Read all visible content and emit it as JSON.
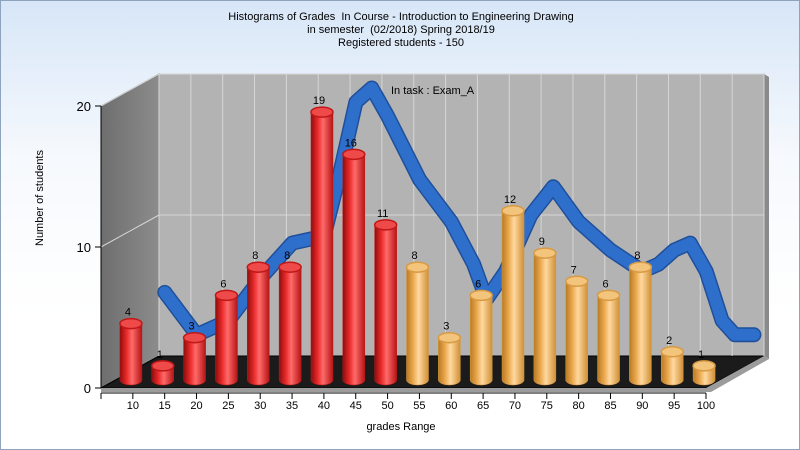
{
  "chart_data": {
    "type": "bar",
    "title_lines": [
      "Histograms of Grades  In Course - Introduction to Engineering Drawing",
      "in semester  (02/2018) Spring 2018/19",
      "Registered students - 150"
    ],
    "annotation": "In task : Exam_A",
    "xlabel": "grades Range",
    "ylabel": "Number of students",
    "ylim": [
      0,
      20
    ],
    "y_ticks": [
      "0",
      "10",
      "20"
    ],
    "x_tick_labels": [
      "10",
      "15",
      "20",
      "25",
      "30",
      "35",
      "40",
      "45",
      "50",
      "55",
      "60",
      "65",
      "70",
      "75",
      "80",
      "85",
      "90",
      "95",
      "100"
    ],
    "values": [
      4,
      1,
      3,
      6,
      8,
      8,
      19,
      16,
      11,
      8,
      3,
      6,
      12,
      9,
      7,
      6,
      8,
      2,
      1
    ],
    "bar_groups": [
      {
        "color": "#d91c1c",
        "from_index": 0,
        "to_index": 8
      },
      {
        "color": "#e8a64a",
        "from_index": 9,
        "to_index": 18
      }
    ],
    "trend_line": {
      "color": "#2f6fcc",
      "points": [
        [
          0.5,
          5.5
        ],
        [
          1.5,
          2.5
        ],
        [
          2.5,
          3.5
        ],
        [
          3.5,
          6.5
        ],
        [
          4.5,
          9.0
        ],
        [
          5.5,
          9.5
        ],
        [
          6.0,
          14.0
        ],
        [
          6.5,
          19.0
        ],
        [
          7.0,
          20.0
        ],
        [
          7.5,
          18.0
        ],
        [
          8.5,
          13.5
        ],
        [
          9.5,
          10.5
        ],
        [
          10.2,
          7.5
        ],
        [
          10.6,
          5.0
        ],
        [
          11.2,
          7.0
        ],
        [
          12.0,
          11.0
        ],
        [
          12.7,
          13.0
        ],
        [
          13.5,
          10.5
        ],
        [
          14.5,
          8.5
        ],
        [
          15.5,
          7.0
        ],
        [
          16.0,
          7.5
        ],
        [
          16.5,
          8.5
        ],
        [
          17.0,
          9.0
        ],
        [
          17.5,
          7.0
        ],
        [
          18.0,
          3.5
        ],
        [
          18.4,
          2.5
        ],
        [
          19.0,
          2.5
        ]
      ]
    },
    "grid": true,
    "style": "3d"
  }
}
